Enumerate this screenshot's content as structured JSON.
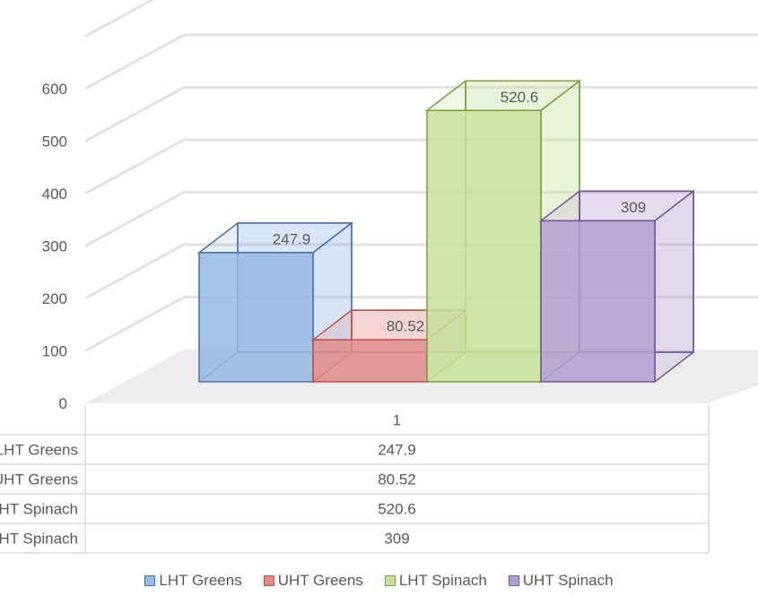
{
  "chart_data": {
    "type": "bar",
    "categories": [
      "1"
    ],
    "series": [
      {
        "name": "LHT Greens",
        "values": [
          247.9
        ],
        "label": "247.9",
        "color": "#95b7e3",
        "edge": "#4a6fa5"
      },
      {
        "name": "UHT Greens",
        "values": [
          80.52
        ],
        "label": "80.52",
        "color": "#e08b8b",
        "edge": "#c0504d"
      },
      {
        "name": "LHT Spinach",
        "values": [
          520.6
        ],
        "label": "520.6",
        "color": "#c8e19a",
        "edge": "#77a03a"
      },
      {
        "name": "UHT Spinach",
        "values": [
          309
        ],
        "label": "309",
        "color": "#b39fd0",
        "edge": "#6f5496"
      }
    ],
    "yticks": [
      "0",
      "100",
      "200",
      "300",
      "400",
      "500",
      "600"
    ],
    "ylim": [
      0,
      700
    ],
    "grid": true,
    "legend": "bottom",
    "data_table": true
  }
}
